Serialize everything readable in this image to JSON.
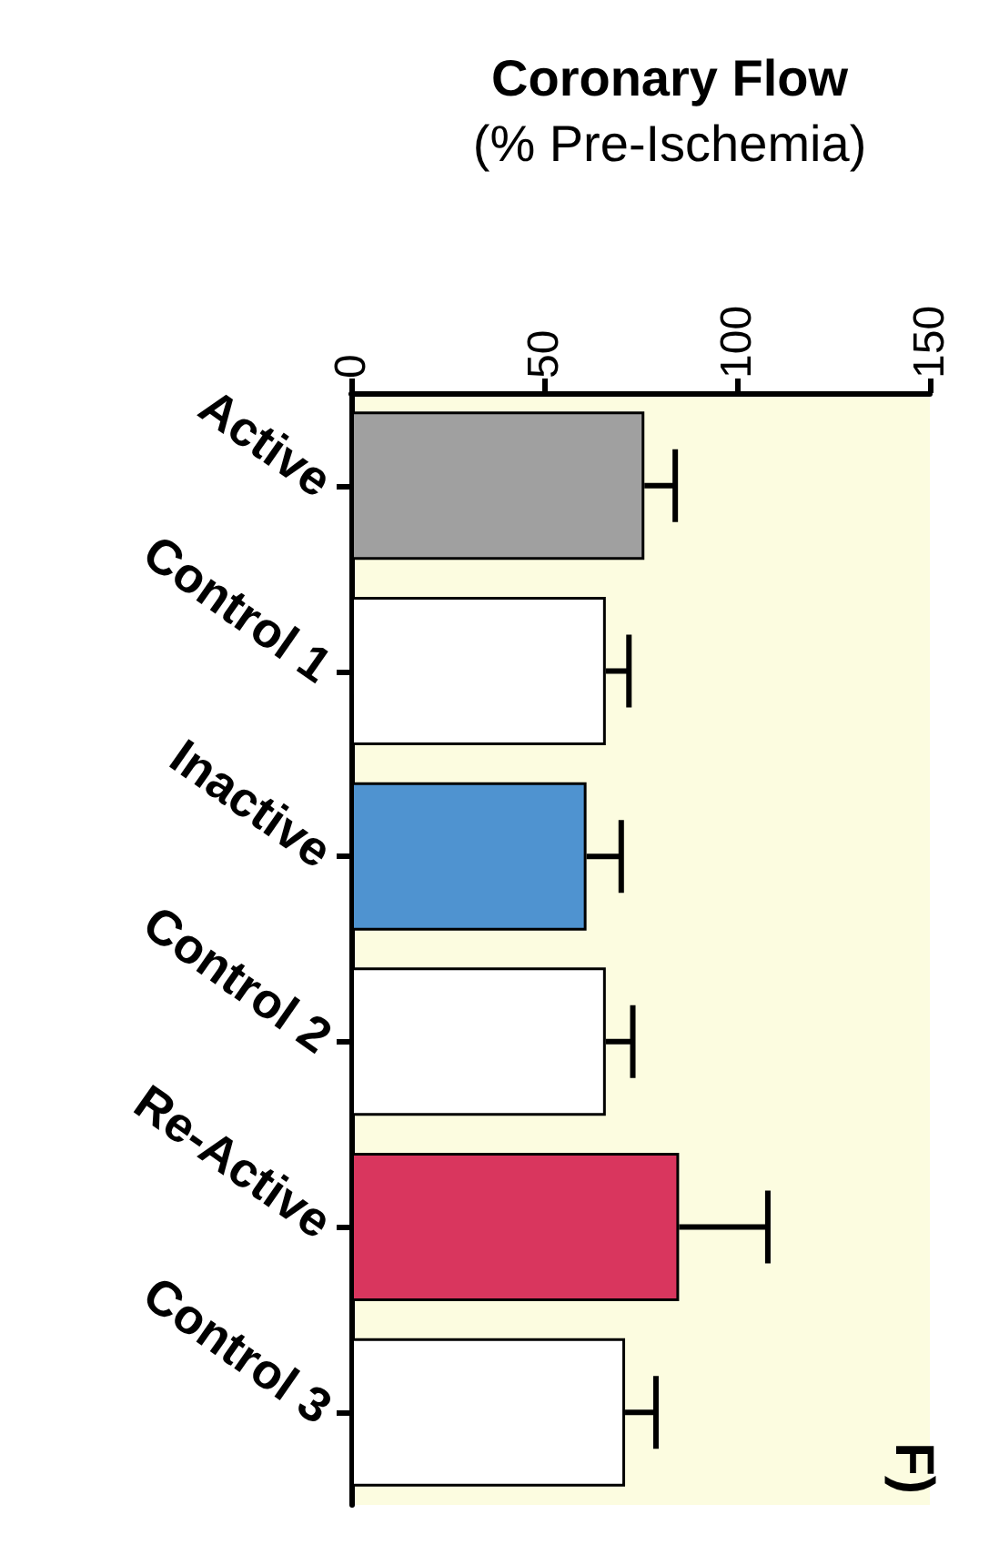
{
  "chart_data": {
    "type": "bar",
    "orientation": "horizontal",
    "title": "Coronary Flow",
    "subtitle": "(% Pre-Ischemia)",
    "categories": [
      "Active",
      "Control 1",
      "Inactive",
      "Control 2",
      "Re-Active",
      "Control 3"
    ],
    "values": [
      76,
      66,
      61,
      66,
      85,
      71
    ],
    "errors": [
      [
        76,
        84
      ],
      [
        66,
        72
      ],
      [
        61,
        70
      ],
      [
        66,
        73
      ],
      [
        85,
        108
      ],
      [
        71,
        79
      ]
    ],
    "colors": [
      "#a0a0a0",
      "#ffffff",
      "#4f93d0",
      "#ffffff",
      "#d9365e",
      "#ffffff"
    ],
    "xlim": [
      0,
      150
    ],
    "xticks": [
      0,
      50,
      100,
      150
    ],
    "grid": false,
    "annotations": [
      "F)"
    ]
  }
}
